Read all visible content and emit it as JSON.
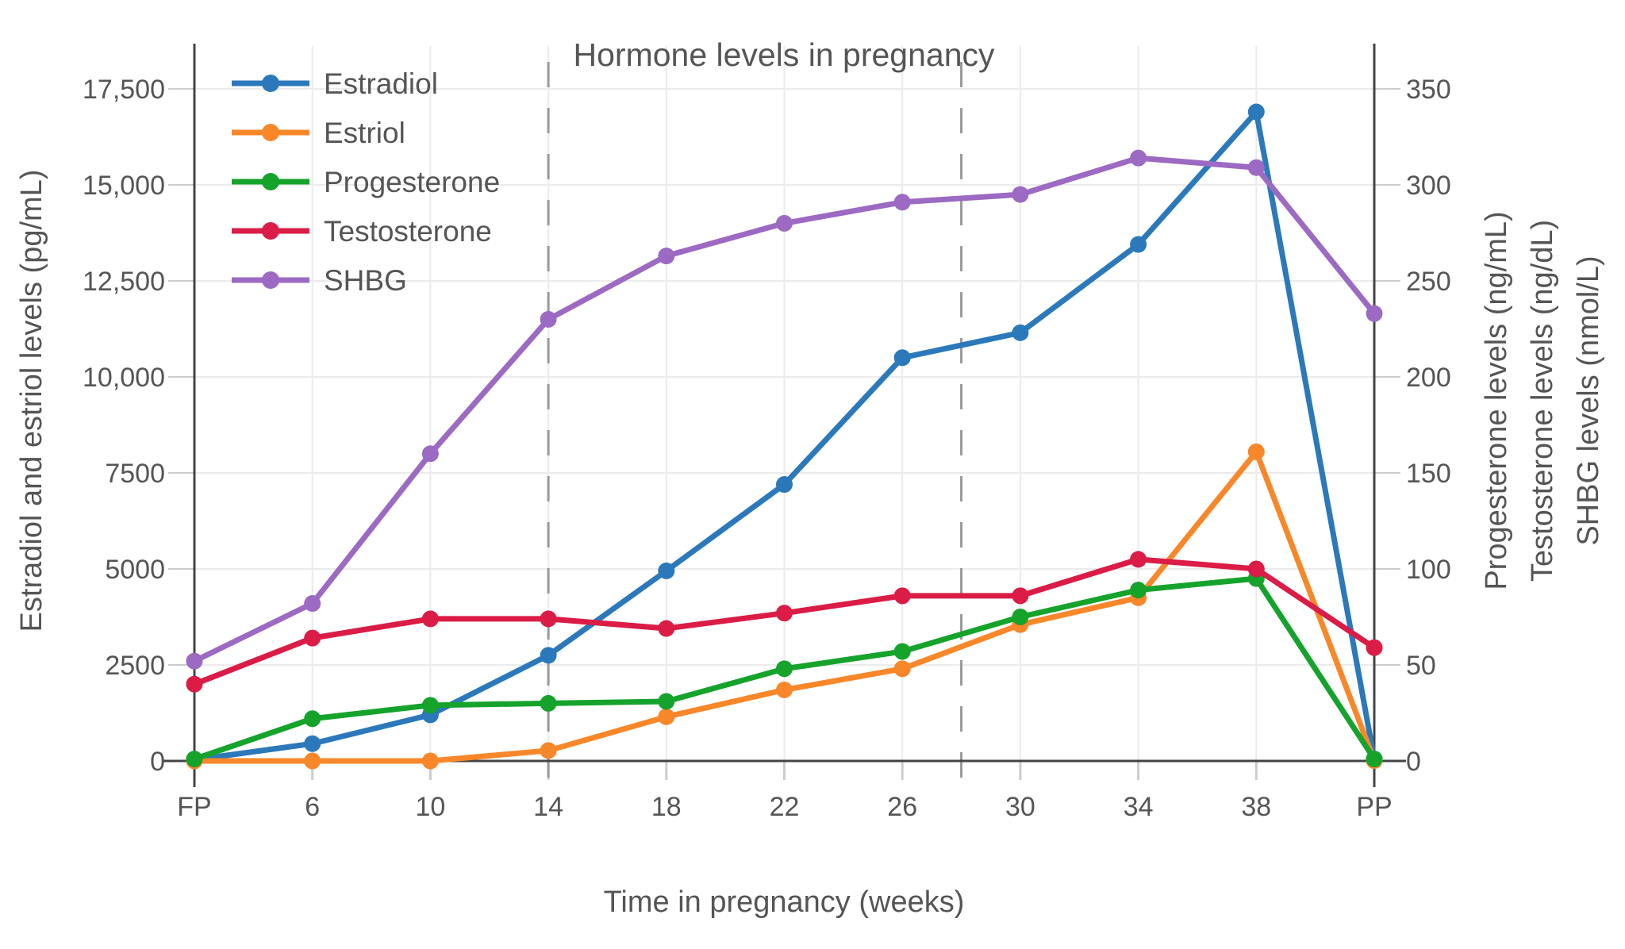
{
  "page": {
    "background_color": "#ffffff",
    "text_color": "#555555",
    "axis_line_color": "#444444",
    "gridline_color": "#ebebeb",
    "tick_stub_color": "#cccccc",
    "divider_color": "#999999"
  },
  "chart_data": {
    "type": "line",
    "title": "Hormone levels in pregnancy",
    "xlabel": "Time in pregnancy (weeks)",
    "ylabel_left": "Estradiol and estriol levels (pg/mL)",
    "ylabel_right_lines": [
      "Progesterone levels (ng/mL)",
      "Testosterone levels (ng/dL)",
      "SHBG levels (nmol/L)"
    ],
    "categories": [
      "FP",
      "6",
      "10",
      "14",
      "18",
      "22",
      "26",
      "30",
      "34",
      "38",
      "PP"
    ],
    "left_axis": {
      "tick_labels": [
        "0",
        "2500",
        "5000",
        "7500",
        "10,000",
        "12,500",
        "15,000",
        "17,500"
      ],
      "tick_values": [
        0,
        2500,
        5000,
        7500,
        10000,
        12500,
        15000,
        17500
      ],
      "range_shown": [
        0,
        18600
      ]
    },
    "right_axis": {
      "tick_labels": [
        "0",
        "50",
        "100",
        "150",
        "200",
        "250",
        "300",
        "350"
      ],
      "tick_values": [
        0,
        50,
        100,
        150,
        200,
        250,
        300,
        350
      ],
      "range_shown": [
        0,
        372
      ]
    },
    "grid": true,
    "legend_position": "top-left-inside",
    "trimester_divider_positions": [
      3,
      6.5
    ],
    "series": [
      {
        "name": "Estradiol",
        "axis": "left",
        "color": "#2b79ba",
        "values": [
          30,
          450,
          1200,
          2750,
          4950,
          7200,
          10500,
          11150,
          13450,
          16900,
          50
        ]
      },
      {
        "name": "Estriol",
        "axis": "left",
        "color": "#f8872a",
        "values": [
          0,
          0,
          0,
          270,
          1150,
          1850,
          2400,
          3550,
          4250,
          8050,
          10
        ]
      },
      {
        "name": "Progesterone",
        "axis": "right",
        "color": "#15a32c",
        "values": [
          1,
          22,
          29,
          30,
          31,
          48,
          57,
          75,
          89,
          95,
          1
        ]
      },
      {
        "name": "Testosterone",
        "axis": "right",
        "color": "#da1c47",
        "values": [
          40,
          64,
          74,
          74,
          69,
          77,
          86,
          86,
          105,
          100,
          59
        ]
      },
      {
        "name": "SHBG",
        "axis": "right",
        "color": "#9c6ac2",
        "values": [
          52,
          82,
          160,
          230,
          263,
          280,
          291,
          295,
          314,
          309,
          233
        ]
      }
    ]
  }
}
